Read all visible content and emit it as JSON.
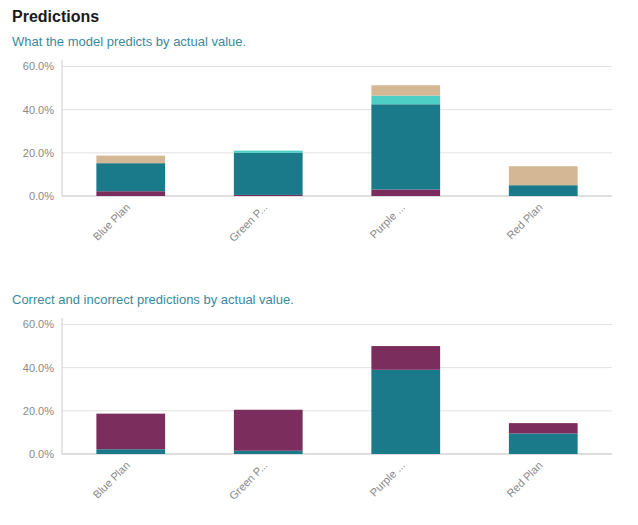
{
  "chart_data": [
    {
      "type": "bar",
      "stacked": true,
      "grid": true,
      "title": "Predictions",
      "subtitle": "What the model predicts by actual value.",
      "categories": [
        "Blue Plan",
        "Green P...",
        "Purple ...",
        "Red Plan"
      ],
      "series": [
        {
          "color": "#7B2D5E",
          "values": [
            0.022,
            0.005,
            0.03,
            0.0
          ]
        },
        {
          "color": "#1A7A8A",
          "values": [
            0.13,
            0.195,
            0.395,
            0.05
          ]
        },
        {
          "color": "#4ECFC5",
          "values": [
            0.0,
            0.01,
            0.04,
            0.0
          ]
        },
        {
          "color": "#D4B896",
          "values": [
            0.035,
            0.0,
            0.048,
            0.088
          ]
        }
      ],
      "ylim": [
        0,
        0.63
      ],
      "yticks": [
        {
          "value": 0.0,
          "label": "0.0%"
        },
        {
          "value": 0.2,
          "label": "20.0%"
        },
        {
          "value": 0.4,
          "label": "40.0%"
        },
        {
          "value": 0.6,
          "label": "60.0%"
        }
      ]
    },
    {
      "type": "bar",
      "stacked": true,
      "grid": true,
      "subtitle": "Correct and incorrect predictions by actual value.",
      "categories": [
        "Blue Plan",
        "Green P...",
        "Purple ...",
        "Red Plan"
      ],
      "series": [
        {
          "color": "#1A7A8A",
          "values": [
            0.022,
            0.015,
            0.39,
            0.095
          ]
        },
        {
          "color": "#7B2D5E",
          "values": [
            0.165,
            0.19,
            0.11,
            0.048
          ]
        }
      ],
      "ylim": [
        0,
        0.63
      ],
      "yticks": [
        {
          "value": 0.0,
          "label": "0.0%"
        },
        {
          "value": 0.2,
          "label": "20.0%"
        },
        {
          "value": 0.4,
          "label": "40.0%"
        },
        {
          "value": 0.6,
          "label": "60.0%"
        }
      ]
    }
  ]
}
